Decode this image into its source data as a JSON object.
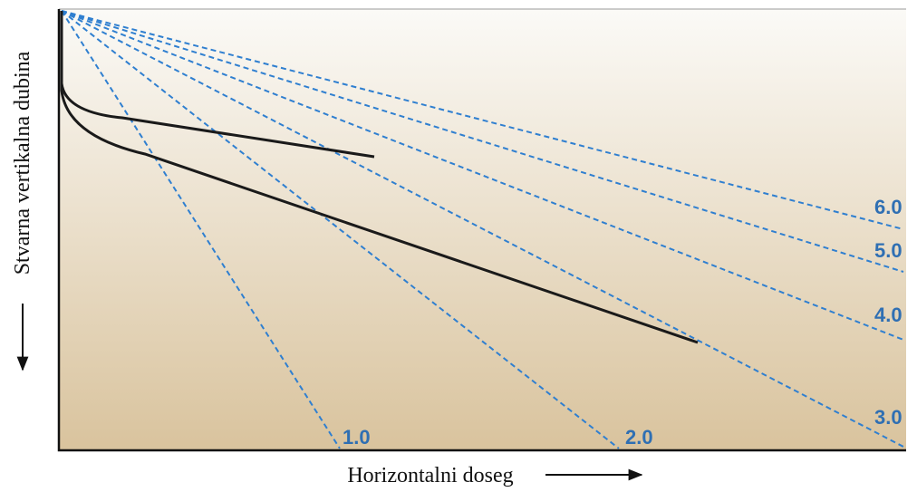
{
  "y_axis_label": "Stvarna vertikalna dubina",
  "x_axis_label": "Horizontalni doseg",
  "ratio_labels": [
    "1.0",
    "2.0",
    "3.0",
    "4.0",
    "5.0",
    "6.0"
  ]
}
